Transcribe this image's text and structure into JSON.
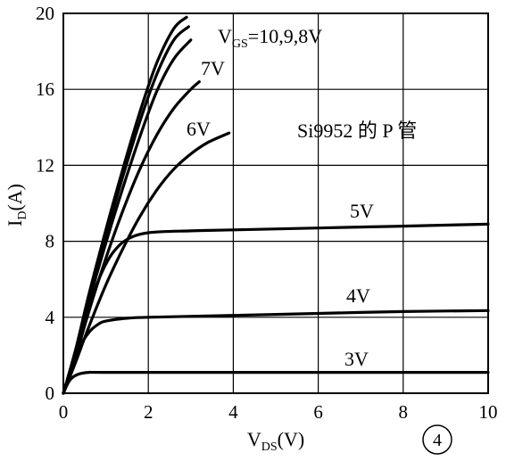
{
  "chart_data": {
    "type": "line",
    "xlabel": "V_DS(V)",
    "ylabel": "I_D(A)",
    "xlim": [
      0,
      10
    ],
    "ylim": [
      0,
      20
    ],
    "xticks": [
      "0",
      "2",
      "4",
      "6",
      "8",
      "10"
    ],
    "yticks": [
      "0",
      "4",
      "8",
      "12",
      "16",
      "20"
    ],
    "grid": true,
    "annotation": "Si9952 的 P 管",
    "figure_number": "④",
    "series": [
      {
        "name": "V_GS=10V",
        "points": [
          [
            0,
            0
          ],
          [
            0.3,
            2.4
          ],
          [
            0.6,
            5.2
          ],
          [
            1.0,
            8.6
          ],
          [
            1.4,
            11.8
          ],
          [
            1.8,
            14.8
          ],
          [
            2.2,
            17.4
          ],
          [
            2.6,
            19.2
          ],
          [
            2.9,
            19.8
          ]
        ]
      },
      {
        "name": "V_GS=9V",
        "points": [
          [
            0,
            0
          ],
          [
            0.3,
            2.3
          ],
          [
            0.6,
            5.0
          ],
          [
            1.0,
            8.3
          ],
          [
            1.4,
            11.4
          ],
          [
            1.8,
            14.3
          ],
          [
            2.2,
            16.8
          ],
          [
            2.6,
            18.6
          ],
          [
            2.95,
            19.3
          ]
        ]
      },
      {
        "name": "V_GS=8V",
        "points": [
          [
            0,
            0
          ],
          [
            0.3,
            2.2
          ],
          [
            0.6,
            4.8
          ],
          [
            1.0,
            7.9
          ],
          [
            1.4,
            10.8
          ],
          [
            1.8,
            13.5
          ],
          [
            2.2,
            15.9
          ],
          [
            2.6,
            17.6
          ],
          [
            3.0,
            18.6
          ]
        ]
      },
      {
        "name": "V_GS=7V",
        "points": [
          [
            0,
            0
          ],
          [
            0.3,
            2.0
          ],
          [
            0.6,
            4.3
          ],
          [
            1.0,
            7.1
          ],
          [
            1.4,
            9.6
          ],
          [
            1.8,
            11.8
          ],
          [
            2.2,
            13.6
          ],
          [
            2.6,
            15.0
          ],
          [
            3.0,
            16.0
          ],
          [
            3.2,
            16.4
          ]
        ]
      },
      {
        "name": "V_GS=6V",
        "points": [
          [
            0,
            0
          ],
          [
            0.3,
            1.7
          ],
          [
            0.6,
            3.5
          ],
          [
            1.0,
            5.7
          ],
          [
            1.4,
            7.6
          ],
          [
            1.8,
            9.3
          ],
          [
            2.2,
            10.7
          ],
          [
            2.6,
            11.8
          ],
          [
            3.0,
            12.6
          ],
          [
            3.4,
            13.2
          ],
          [
            3.9,
            13.7
          ]
        ]
      },
      {
        "name": "V_GS=5V",
        "points": [
          [
            0,
            0
          ],
          [
            0.2,
            1.5
          ],
          [
            0.4,
            3.0
          ],
          [
            0.6,
            4.5
          ],
          [
            0.8,
            5.8
          ],
          [
            1.0,
            6.8
          ],
          [
            1.2,
            7.5
          ],
          [
            1.5,
            8.1
          ],
          [
            2.0,
            8.45
          ],
          [
            3.0,
            8.55
          ],
          [
            4.0,
            8.6
          ],
          [
            6.0,
            8.7
          ],
          [
            8.0,
            8.8
          ],
          [
            10.0,
            8.9
          ]
        ]
      },
      {
        "name": "V_GS=4V",
        "points": [
          [
            0,
            0
          ],
          [
            0.2,
            1.4
          ],
          [
            0.4,
            2.5
          ],
          [
            0.6,
            3.2
          ],
          [
            0.8,
            3.6
          ],
          [
            1.0,
            3.8
          ],
          [
            1.5,
            3.95
          ],
          [
            2.0,
            4.0
          ],
          [
            4.0,
            4.1
          ],
          [
            6.0,
            4.2
          ],
          [
            8.0,
            4.3
          ],
          [
            10.0,
            4.35
          ]
        ]
      },
      {
        "name": "V_GS=3V",
        "points": [
          [
            0,
            0
          ],
          [
            0.1,
            0.5
          ],
          [
            0.2,
            0.8
          ],
          [
            0.35,
            1.0
          ],
          [
            0.6,
            1.1
          ],
          [
            1.0,
            1.1
          ],
          [
            4.0,
            1.1
          ],
          [
            10.0,
            1.1
          ]
        ]
      }
    ],
    "labels": [
      {
        "text": "V",
        "sub": "GS",
        "rest": "=10,9,8V"
      },
      {
        "text": "7V"
      },
      {
        "text": "6V"
      },
      {
        "text": "5V"
      },
      {
        "text": "4V"
      },
      {
        "text": "3V"
      }
    ]
  }
}
